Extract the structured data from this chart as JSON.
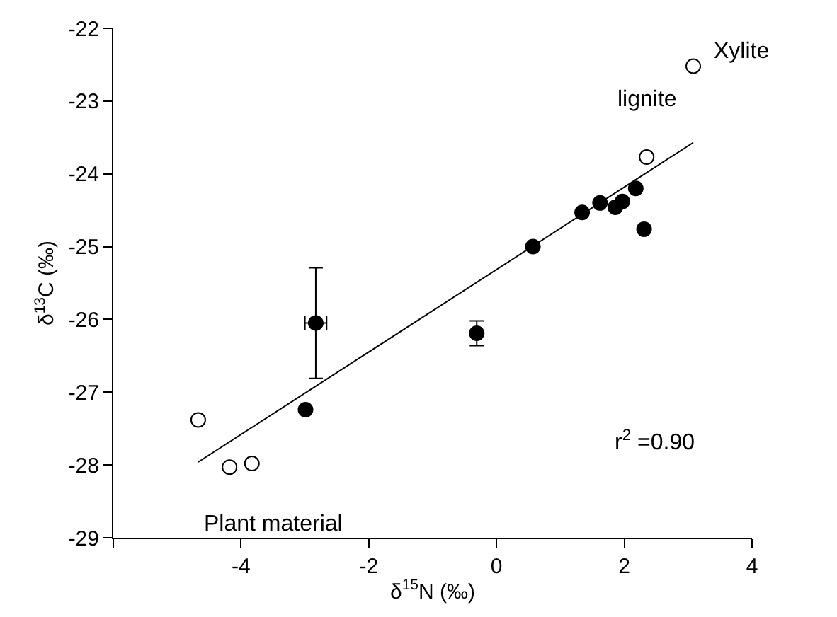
{
  "chart_data": {
    "type": "scatter",
    "xlabel": "δ$^{15}$N (‰)",
    "ylabel": "δ$^{13}$C (‰)",
    "xlim": [
      -6,
      4
    ],
    "xticks": [
      {
        "value": -6,
        "label": null
      },
      -4,
      -2,
      0,
      2,
      4
    ],
    "ylim": [
      -29,
      -22
    ],
    "yticks": [
      -29,
      -28,
      -27,
      -26,
      -25,
      -24,
      -23,
      -22
    ],
    "grid": false,
    "marker": "circle",
    "series": [
      {
        "color": "#000000",
        "x": [
          -2.99,
          -2.83,
          -0.31,
          0.57,
          1.34,
          1.62,
          1.86,
          1.97,
          2.18,
          2.31
        ],
        "values": [
          -27.24,
          -26.05,
          -26.19,
          -25.0,
          -24.53,
          -24.4,
          -24.46,
          -24.38,
          -24.2,
          -24.76
        ],
        "errors": [
          null,
          0.76,
          0.17,
          null,
          null,
          null,
          null,
          null,
          null,
          null
        ],
        "xerrors": [
          null,
          0.17,
          null,
          null,
          null,
          null,
          null,
          null,
          null,
          null
        ]
      },
      {
        "color": "#ffffff",
        "x": [
          -4.67,
          -4.18,
          -3.83,
          2.35,
          3.08
        ],
        "values": [
          -27.38,
          -28.03,
          -27.98,
          -23.77,
          -22.52
        ]
      },
      {
        "type": "line",
        "marker": "none",
        "color": "#000000",
        "x": [
          -4.67,
          3.08
        ],
        "values": [
          -27.96,
          -23.57
        ]
      }
    ],
    "annotations": [
      {
        "text": "Xylite",
        "x": 3.08,
        "y": -22.52
      },
      {
        "text": "lignite",
        "x": 2.35,
        "y": -23.77
      },
      {
        "text": "Plant material",
        "x": -4.18,
        "y": -28.03
      },
      "r$^{2}$ =0.90"
    ]
  }
}
